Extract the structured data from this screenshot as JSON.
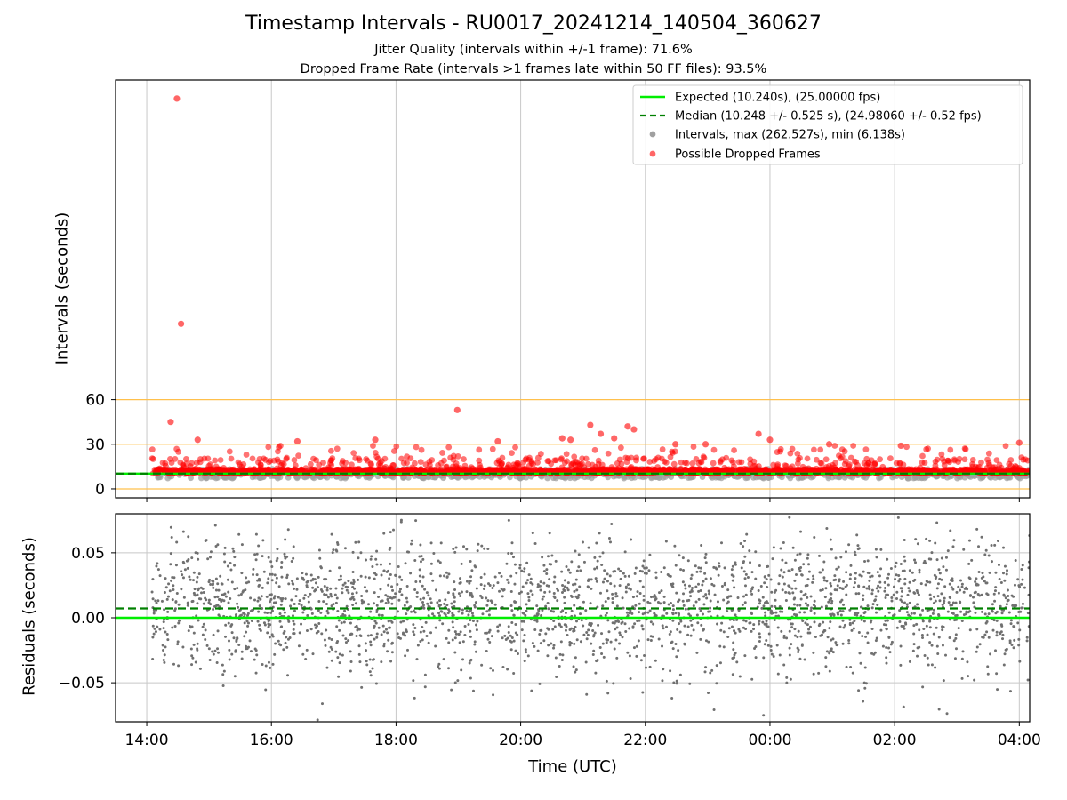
{
  "title": "Timestamp Intervals - RU0017_20241214_140504_360627",
  "subtitle_lines": [
    "Jitter Quality (intervals within +/-1 frame): 71.6%",
    "Dropped Frame Rate (intervals >1 frames late within 50 FF files): 93.5%"
  ],
  "colors": {
    "expected": "#00ee00",
    "median": "#008000",
    "intervals": "#a0a0a0",
    "dropped": "#ff0000",
    "threshold": "#ffc04c",
    "residual_points": "#707070",
    "grid": "#c8c8c8"
  },
  "chart_data": [
    {
      "type": "scatter",
      "name": "intervals",
      "ylabel": "Intervals (seconds)",
      "xlim": [
        "13:30",
        "04:10"
      ],
      "ylim": [
        -6,
        275
      ],
      "yticks": [
        0,
        30,
        60
      ],
      "xtick_labels": [
        "14:00",
        "16:00",
        "18:00",
        "20:00",
        "22:00",
        "00:00",
        "02:00",
        "04:00"
      ],
      "grid": "vertical",
      "legend_position": "top-right",
      "legend": [
        "Expected (10.240s), (25.00000 fps)",
        "Median (10.248 +/- 0.525 s), (24.98060 +/- 0.52 fps)",
        "Intervals, max (262.527s), min (6.138s)",
        "Possible Dropped Frames"
      ],
      "expected_interval": 10.24,
      "median_interval": 10.248,
      "threshold_lines": [
        0,
        30,
        60
      ],
      "time_range": [
        "14:05",
        "04:10"
      ],
      "outliers": [
        {
          "time": "14:29",
          "value": 262.5
        },
        {
          "time": "14:33",
          "value": 111
        },
        {
          "time": "14:23",
          "value": 45
        },
        {
          "time": "14:49",
          "value": 33
        },
        {
          "time": "18:59",
          "value": 53
        },
        {
          "time": "21:07",
          "value": 43
        },
        {
          "time": "21:43",
          "value": 42
        },
        {
          "time": "21:49",
          "value": 40
        },
        {
          "time": "20:40",
          "value": 34
        },
        {
          "time": "20:48",
          "value": 33
        },
        {
          "time": "21:17",
          "value": 37
        },
        {
          "time": "23:49",
          "value": 37
        },
        {
          "time": "00:00",
          "value": 33
        },
        {
          "time": "17:40",
          "value": 33
        },
        {
          "time": "16:25",
          "value": 32
        },
        {
          "time": "19:38",
          "value": 32
        },
        {
          "time": "21:30",
          "value": 34
        },
        {
          "time": "04:00",
          "value": 31
        },
        {
          "time": "02:06",
          "value": 29
        },
        {
          "time": "22:58",
          "value": 30
        },
        {
          "time": "22:29",
          "value": 30
        },
        {
          "time": "00:57",
          "value": 30
        }
      ]
    },
    {
      "type": "scatter",
      "name": "residuals",
      "xlabel": "Time (UTC)",
      "ylabel": "Residuals (seconds)",
      "xlim": [
        "13:30",
        "04:10"
      ],
      "ylim": [
        -0.08,
        0.08
      ],
      "yticks": [
        -0.05,
        0.0,
        0.05
      ],
      "ytick_labels": [
        "−0.05",
        "0.00",
        "0.05"
      ],
      "xtick_labels": [
        "14:00",
        "16:00",
        "18:00",
        "20:00",
        "22:00",
        "00:00",
        "02:00",
        "04:00"
      ],
      "grid": "both",
      "expected_residual": 0.0,
      "median_residual": 0.0072,
      "spread_std": 0.025
    }
  ]
}
